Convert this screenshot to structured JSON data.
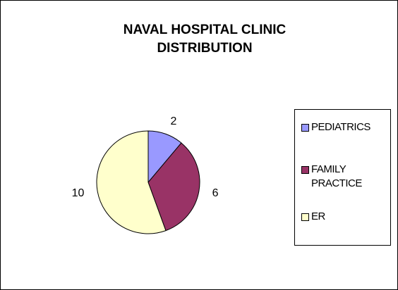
{
  "chart_data": {
    "type": "pie",
    "title": "NAVAL HOSPITAL CLINIC DISTRIBUTION",
    "categories": [
      "PEDIATRICS",
      "FAMILY PRACTICE",
      "ER"
    ],
    "values": [
      2,
      6,
      10
    ],
    "colors": [
      "#9999ff",
      "#993366",
      "#ffffcc"
    ],
    "legend": "right"
  }
}
